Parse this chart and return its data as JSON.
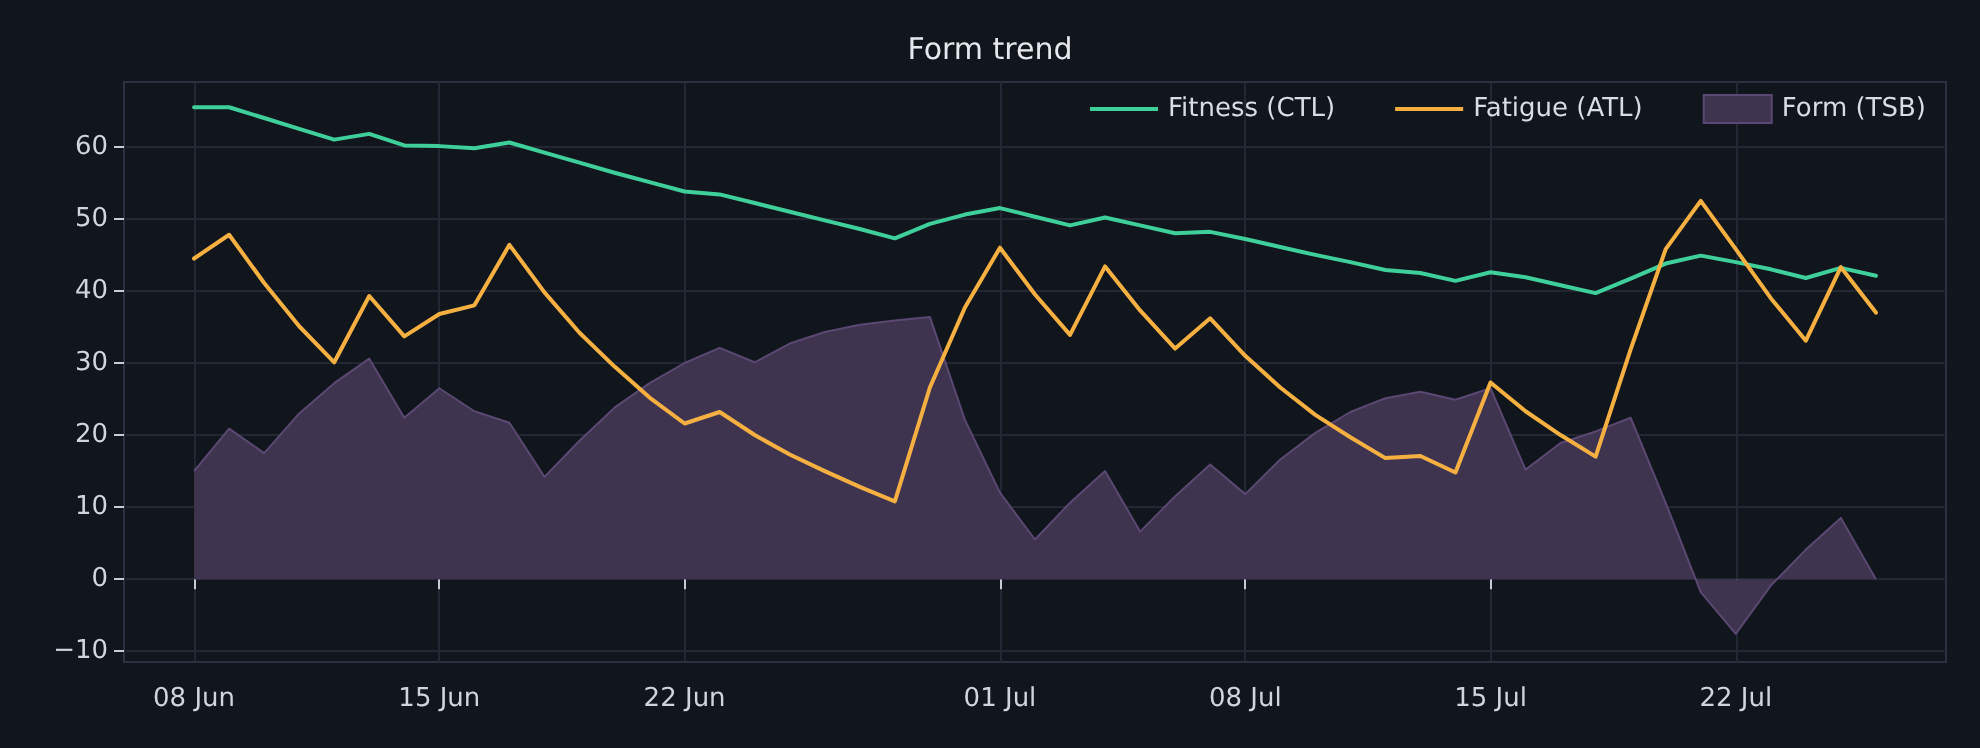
{
  "chart_data": {
    "type": "line",
    "title": "Form trend",
    "x": [
      "--06-08",
      "--06-09",
      "--06-10",
      "--06-11",
      "--06-12",
      "--06-13",
      "--06-14",
      "--06-15",
      "--06-16",
      "--06-17",
      "--06-18",
      "--06-19",
      "--06-20",
      "--06-21",
      "--06-22",
      "--06-23",
      "--06-24",
      "--06-25",
      "--06-26",
      "--06-27",
      "--06-28",
      "--06-29",
      "--06-30",
      "--07-01",
      "--07-02",
      "--07-03",
      "--07-04",
      "--07-05",
      "--07-06",
      "--07-07",
      "--07-08",
      "--07-09",
      "--07-10",
      "--07-11",
      "--07-12",
      "--07-13",
      "--07-14",
      "--07-15",
      "--07-16",
      "--07-17",
      "--07-18",
      "--07-19",
      "--07-20",
      "--07-21",
      "--07-22",
      "--07-23",
      "--07-24",
      "--07-25",
      "--07-26"
    ],
    "series": [
      {
        "name": "Fitness (CTL)",
        "color": "#3ecf9a",
        "values": [
          65.5,
          65.5,
          64,
          62.5,
          61,
          61.8,
          60.2,
          60.1,
          59.8,
          60.6,
          59.2,
          57.8,
          56.4,
          55.1,
          53.8,
          53.4,
          52.2,
          51,
          49.8,
          48.6,
          47.3,
          49.3,
          50.6,
          51.5,
          50.3,
          49.1,
          50.2,
          49.1,
          48,
          48.2,
          47.2,
          46.1,
          45,
          44,
          42.9,
          42.5,
          41.4,
          42.6,
          41.9,
          40.8,
          39.7,
          41.7,
          43.8,
          44.9,
          44,
          43,
          41.8,
          43.2,
          42.1
        ]
      },
      {
        "name": "Fatigue (ATL)",
        "color": "#f5b041",
        "values": [
          44.5,
          47.8,
          41.1,
          35.1,
          30.1,
          39.3,
          33.7,
          36.8,
          38,
          46.4,
          39.8,
          34.2,
          29.5,
          25.2,
          21.6,
          23.2,
          20,
          17.3,
          15,
          12.8,
          10.8,
          26.6,
          37.7,
          46,
          39.5,
          33.9,
          43.4,
          37.3,
          32,
          36.2,
          31,
          26.6,
          22.8,
          19.7,
          16.8,
          17.1,
          14.8,
          27.3,
          23.3,
          20,
          17,
          31.9,
          45.8,
          52.5,
          45.8,
          39,
          33.1,
          43.3,
          37
        ]
      },
      {
        "name": "Form (TSB)",
        "type": "area",
        "color": "#3f3450",
        "values": [
          15,
          20.9,
          17.5,
          23,
          27.2,
          30.6,
          22.4,
          26.5,
          23.3,
          21.7,
          14.2,
          19.2,
          23.8,
          27.2,
          30,
          32.1,
          30.1,
          32.7,
          34.3,
          35.3,
          35.9,
          36.4,
          22.1,
          12,
          5.5,
          10.6,
          15,
          6.6,
          11.5,
          15.9,
          11.8,
          16.6,
          20.3,
          23.2,
          25.1,
          26,
          24.9,
          26.5,
          15.2,
          18.9,
          20.5,
          22.4,
          10.6,
          -1.8,
          -7.6,
          -0.9,
          4.1,
          8.5,
          0
        ]
      }
    ],
    "xlim": [
      "--06-06",
      "--07-28"
    ],
    "xticks": [
      {
        "value": "--06-08",
        "label": "08 Jun"
      },
      {
        "value": "--06-15",
        "label": "15 Jun"
      },
      {
        "value": "--06-22",
        "label": "22 Jun"
      },
      {
        "value": "--07-01",
        "label": "01 Jul"
      },
      {
        "value": "--07-08",
        "label": "08 Jul"
      },
      {
        "value": "--07-15",
        "label": "15 Jul"
      },
      {
        "value": "--07-22",
        "label": "22 Jul"
      }
    ],
    "ylim": [
      -11.5,
      69
    ],
    "yticks": [
      {
        "value": -10,
        "label": "−10"
      },
      0,
      10,
      20,
      30,
      40,
      50,
      60
    ],
    "grid": true,
    "legend": "top right",
    "marker": "none",
    "line_style": "solid"
  }
}
